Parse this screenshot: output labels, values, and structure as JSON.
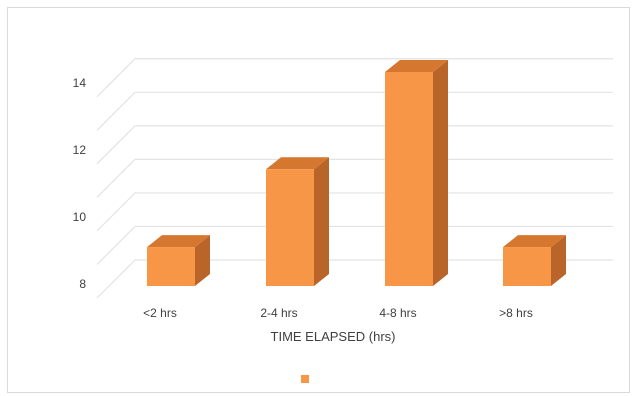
{
  "chart_data": {
    "type": "bar",
    "categories": [
      "<2 hrs",
      "2-4 hrs",
      "4-8 hrs",
      ">8 hrs"
    ],
    "values": [
      9.0,
      11.0,
      13.5,
      9.0
    ],
    "ylim": [
      8,
      14
    ],
    "yticks": [
      8,
      10,
      12,
      14
    ],
    "title": "",
    "xlabel": "TIME ELAPSED (hrs)",
    "ylabel": "",
    "grid": true,
    "three_d": true,
    "legend": {
      "position": "bottom",
      "entries": [
        ""
      ]
    },
    "colors": {
      "front": "#f79646",
      "side": "#b9652a",
      "top": "#d6772f",
      "grid": "#e3e3e3",
      "text": "#404040"
    }
  }
}
